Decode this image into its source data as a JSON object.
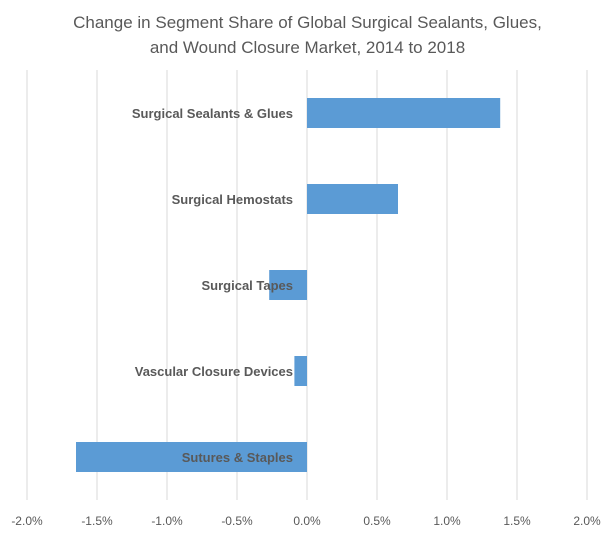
{
  "chart_data": {
    "type": "bar",
    "orientation": "horizontal",
    "title_lines": [
      "Change in Segment Share of Global Surgical Sealants, Glues,",
      "and Wound Closure Market, 2014 to 2018"
    ],
    "categories": [
      "Surgical Sealants & Glues",
      "Surgical Hemostats",
      "Surgical Tapes",
      "Vascular Closure Devices",
      "Sutures & Staples"
    ],
    "values": [
      1.38,
      0.65,
      -0.27,
      -0.09,
      -1.65
    ],
    "value_unit": "%",
    "xlim": [
      -2.0,
      2.0
    ],
    "xticks": [
      -2.0,
      -1.5,
      -1.0,
      -0.5,
      0.0,
      0.5,
      1.0,
      1.5,
      2.0
    ],
    "xtick_labels": [
      "-2.0%",
      "-1.5%",
      "-1.0%",
      "-0.5%",
      "0.0%",
      "0.5%",
      "1.0%",
      "1.5%",
      "2.0%"
    ],
    "xlabel": "",
    "ylabel": "",
    "grid": "vertical",
    "legend": "none",
    "bar_color": "#5b9bd5",
    "grid_color": "#d9d9d9",
    "text_color": "#595959"
  }
}
